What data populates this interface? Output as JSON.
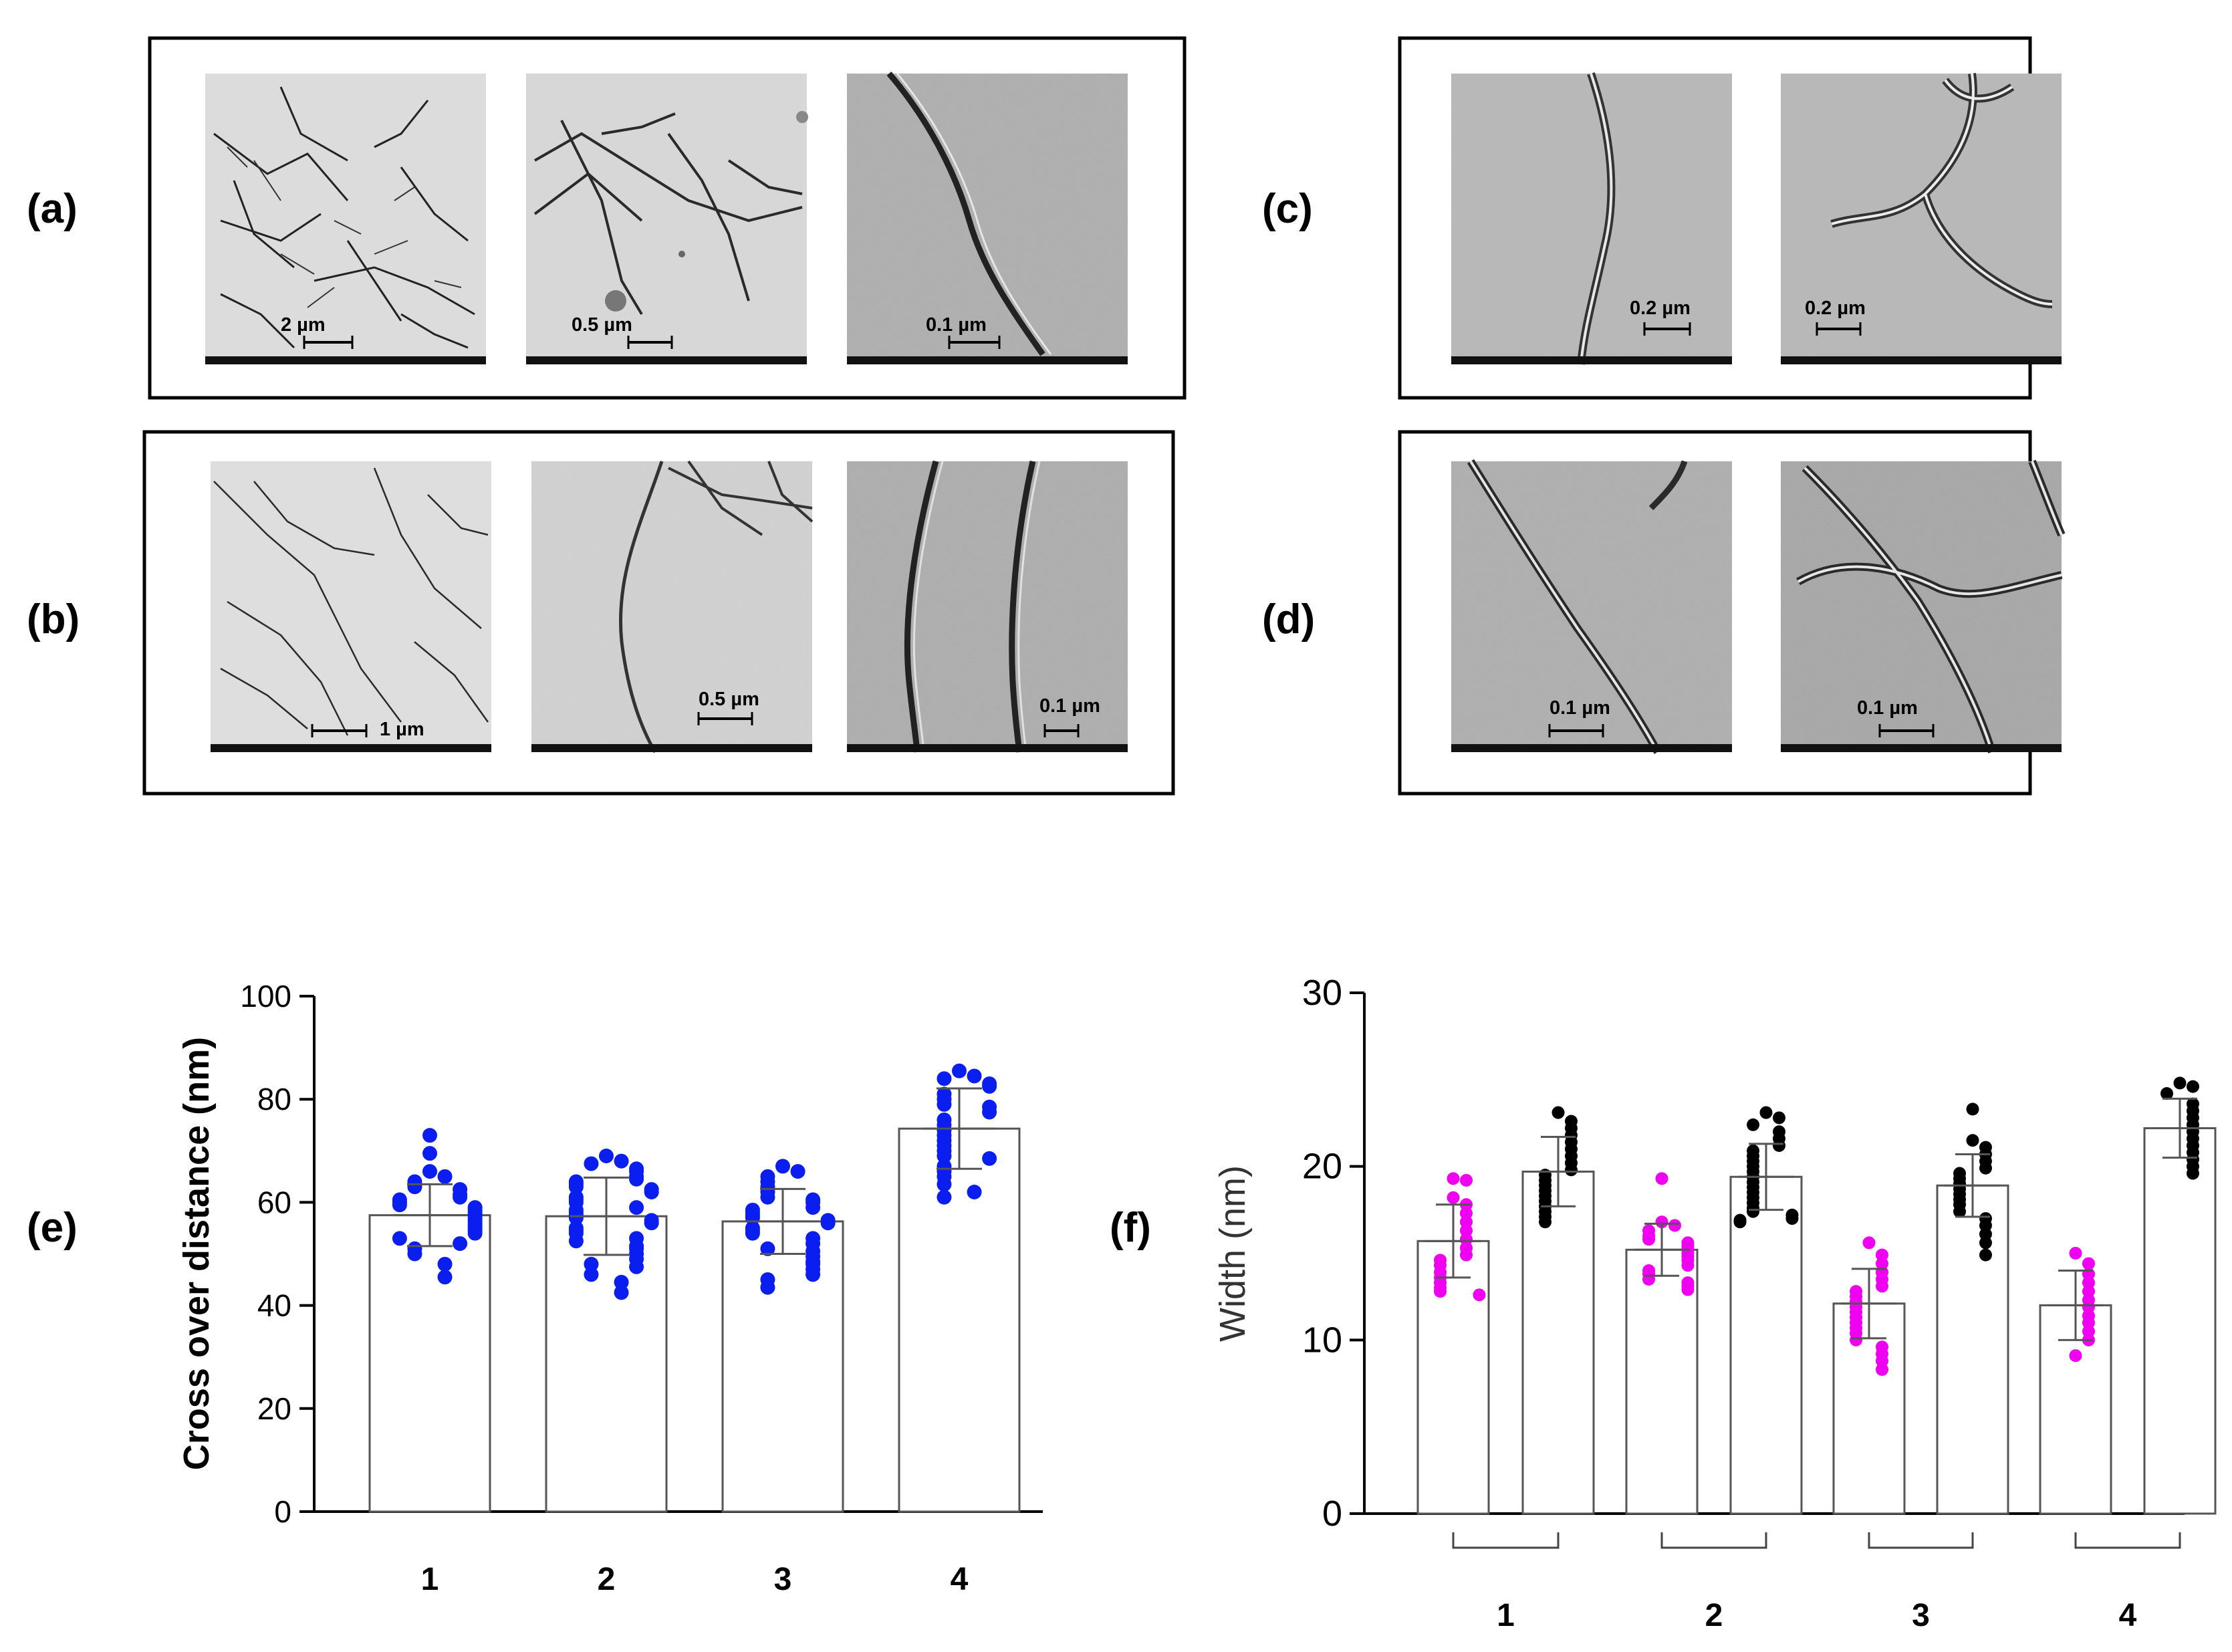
{
  "panels": {
    "a": {
      "label": "(a)",
      "images": [
        {
          "scale": "2 µm",
          "style": "dense-network-light"
        },
        {
          "scale": "0.5 µm",
          "style": "fibrils-light"
        },
        {
          "scale": "0.1 µm",
          "style": "single-fibril-grainy"
        }
      ]
    },
    "b": {
      "label": "(b)",
      "images": [
        {
          "scale": "1 µm",
          "style": "dense-network-light"
        },
        {
          "scale": "0.5 µm",
          "style": "fibrils-light"
        },
        {
          "scale": "0.1 µm",
          "style": "double-fibril-grainy"
        }
      ]
    },
    "c": {
      "label": "(c)",
      "images": [
        {
          "scale": "0.2 µm",
          "style": "twisted-fibril-grainy"
        },
        {
          "scale": "0.2 µm",
          "style": "branched-fibril-grainy"
        }
      ]
    },
    "d": {
      "label": "(d)",
      "images": [
        {
          "scale": "0.1 µm",
          "style": "wavy-fibril-grainy"
        },
        {
          "scale": "0.1 µm",
          "style": "crossed-fibril-grainy"
        }
      ]
    }
  },
  "chart_data": [
    {
      "panel_label": "(e)",
      "type": "bar",
      "categories": [
        "1",
        "2",
        "3",
        "4"
      ],
      "values": [
        57.5,
        57.3,
        56.3,
        74.3
      ],
      "error_sd": [
        6.0,
        7.5,
        6.3,
        7.8
      ],
      "ylabel": "Cross over distance (nm)",
      "xlabel": "",
      "ylim": [
        0,
        100
      ],
      "yticks": [
        "0",
        "20",
        "40",
        "60",
        "80",
        "100"
      ],
      "point_color": "#0a1ef0",
      "points": [
        [
          73,
          69.5,
          66,
          65,
          64,
          63,
          62.5,
          61.5,
          61,
          60.5,
          60,
          59.5,
          59,
          58.5,
          58,
          57.5,
          57,
          56.5,
          56,
          55.5,
          55,
          54.5,
          54,
          53,
          52,
          51,
          50,
          48,
          45.5
        ],
        [
          69,
          68,
          67.5,
          66.5,
          66,
          65,
          64.5,
          64,
          63.5,
          63,
          62.5,
          62,
          61,
          60.5,
          60,
          59,
          58.5,
          58,
          57.5,
          57,
          56.5,
          56,
          55,
          54.5,
          54,
          53,
          52.5,
          51.5,
          51,
          50,
          49,
          48,
          47.5,
          46,
          44.5,
          42.5
        ],
        [
          67,
          66,
          65,
          64,
          63,
          62,
          61,
          60.5,
          60,
          59,
          58.5,
          58,
          57.5,
          57,
          56.5,
          56,
          55,
          54.5,
          54,
          53,
          52,
          51,
          50.5,
          49.5,
          48.5,
          48,
          47,
          46,
          45,
          43.5
        ],
        [
          85.5,
          84.5,
          84,
          83,
          82.5,
          81,
          80,
          79,
          78.5,
          77.5,
          76,
          75,
          74,
          73,
          72,
          71,
          70,
          69,
          68.5,
          67,
          66,
          65,
          63.5,
          62,
          61
        ]
      ]
    },
    {
      "panel_label": "(f)",
      "type": "bar",
      "categories": [
        "1",
        "2",
        "3",
        "4"
      ],
      "series": [
        {
          "name": "",
          "color": "#f000f0",
          "values": [
            15.7,
            15.2,
            12.1,
            12.0
          ],
          "error_sd": [
            2.1,
            1.5,
            2.0,
            2.0
          ]
        },
        {
          "name": "",
          "color": "#000000",
          "values": [
            19.7,
            19.4,
            18.9,
            22.2
          ],
          "error_sd": [
            2.0,
            1.9,
            1.8,
            1.7
          ]
        }
      ],
      "ylabel": "Width (nm)",
      "xlabel": "",
      "ylim": [
        0,
        30
      ],
      "yticks": [
        "0",
        "10",
        "20",
        "30"
      ],
      "points": [
        [
          [
            19.3,
            19.2,
            18.2,
            17.8,
            17.3,
            16.8,
            16.3,
            15.8,
            15.3,
            14.9,
            14.6,
            14.3,
            13.9,
            13.6,
            13.3,
            13.0,
            12.8,
            12.6
          ],
          [
            23.1,
            22.6,
            22.2,
            21.8,
            21.4,
            21.0,
            20.6,
            20.2,
            19.8,
            19.5,
            19.2,
            18.9,
            18.6,
            18.3,
            18.0,
            17.7,
            17.4,
            17.1,
            16.8
          ]
        ],
        [
          [
            19.3,
            16.8,
            16.6,
            16.3,
            16.0,
            15.8,
            15.6,
            15.4,
            15.2,
            15.0,
            14.8,
            14.6,
            14.3,
            14.0,
            13.8,
            13.5,
            13.3,
            13.1,
            12.9
          ],
          [
            23.1,
            22.8,
            22.4,
            22.0,
            21.6,
            21.2,
            20.9,
            20.6,
            20.3,
            20.0,
            19.7,
            19.4,
            19.1,
            18.8,
            18.5,
            18.2,
            17.9,
            17.6,
            17.4,
            17.2,
            17.0,
            16.9,
            16.8
          ]
        ],
        [
          [
            15.6,
            14.9,
            14.4,
            13.9,
            13.5,
            13.1,
            12.8,
            12.5,
            12.2,
            11.9,
            11.6,
            11.3,
            11.0,
            10.7,
            10.4,
            10.0,
            9.6,
            9.2,
            8.8,
            8.3
          ],
          [
            23.3,
            21.5,
            21.1,
            20.7,
            20.3,
            19.9,
            19.6,
            19.3,
            19.0,
            18.7,
            18.4,
            18.1,
            17.8,
            17.4,
            17.0,
            16.6,
            16.1,
            15.6,
            14.9
          ]
        ],
        [
          [
            15.0,
            14.4,
            13.8,
            13.3,
            12.8,
            12.3,
            11.9,
            11.4,
            11.0,
            10.5,
            10.0,
            9.1
          ],
          [
            24.8,
            24.6,
            24.2,
            23.6,
            23.2,
            22.8,
            22.4,
            22.0,
            21.6,
            21.2,
            20.8,
            20.4,
            20.0,
            19.6
          ]
        ]
      ]
    }
  ]
}
